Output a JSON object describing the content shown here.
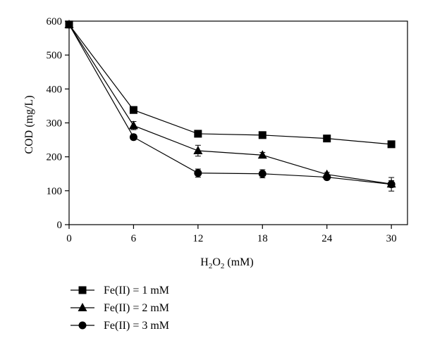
{
  "chart_data": {
    "type": "line",
    "x": [
      0,
      6,
      12,
      18,
      24,
      30
    ],
    "xticks": [
      "0",
      "6",
      "12",
      "18",
      "24",
      "30"
    ],
    "yticks": [
      "0",
      "100",
      "200",
      "300",
      "400",
      "500",
      "600"
    ],
    "xlim": [
      0,
      31.5
    ],
    "ylim": [
      0,
      600
    ],
    "xlabel_parts": {
      "main": "H",
      "sub1": "2",
      "mid": "O",
      "sub2": "2",
      "tail": " (mM)"
    },
    "ylabel": "COD (mg/L)",
    "grid": false,
    "legend_position": "bottom-left",
    "series": [
      {
        "name": "Fe(II) = 1 mM",
        "marker": "square",
        "values": [
          590,
          338,
          268,
          264,
          254,
          237
        ],
        "errors": [
          8,
          10,
          6,
          6,
          6,
          8
        ]
      },
      {
        "name": "Fe(II) = 2 mM",
        "marker": "triangle",
        "values": [
          590,
          292,
          218,
          205,
          148,
          120
        ],
        "errors": [
          8,
          12,
          16,
          8,
          6,
          10
        ]
      },
      {
        "name": "Fe(II) = 3 mM",
        "marker": "circle",
        "values": [
          590,
          258,
          152,
          150,
          140,
          119
        ],
        "errors": [
          8,
          8,
          12,
          12,
          6,
          20
        ]
      }
    ]
  }
}
